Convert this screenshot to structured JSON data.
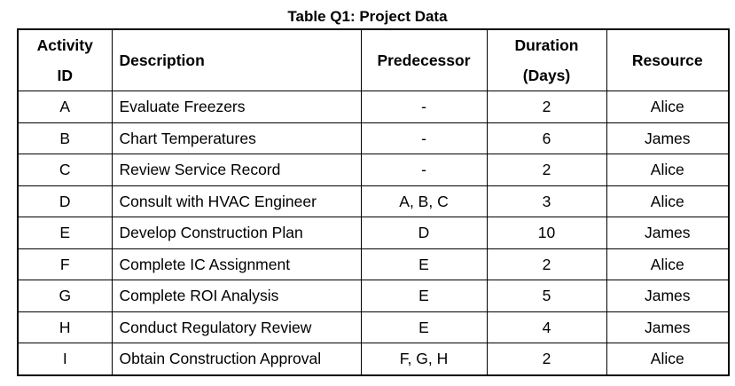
{
  "caption": "Table Q1: Project Data",
  "headers": {
    "activity_line1": "Activity",
    "activity_line2": "ID",
    "description": "Description",
    "predecessor": "Predecessor",
    "duration_line1": "Duration",
    "duration_line2": "(Days)",
    "resource": "Resource"
  },
  "rows": [
    {
      "id": "A",
      "description": "Evaluate Freezers",
      "predecessor": "-",
      "duration": "2",
      "resource": "Alice"
    },
    {
      "id": "B",
      "description": "Chart Temperatures",
      "predecessor": "-",
      "duration": "6",
      "resource": "James"
    },
    {
      "id": "C",
      "description": "Review Service Record",
      "predecessor": "-",
      "duration": "2",
      "resource": "Alice"
    },
    {
      "id": "D",
      "description": "Consult with HVAC Engineer",
      "predecessor": "A, B, C",
      "duration": "3",
      "resource": "Alice"
    },
    {
      "id": "E",
      "description": "Develop Construction Plan",
      "predecessor": "D",
      "duration": "10",
      "resource": "James"
    },
    {
      "id": "F",
      "description": "Complete IC Assignment",
      "predecessor": "E",
      "duration": "2",
      "resource": "Alice"
    },
    {
      "id": "G",
      "description": "Complete ROI Analysis",
      "predecessor": "E",
      "duration": "5",
      "resource": "James"
    },
    {
      "id": "H",
      "description": "Conduct Regulatory Review",
      "predecessor": "E",
      "duration": "4",
      "resource": "James"
    },
    {
      "id": "I",
      "description": "Obtain Construction Approval",
      "predecessor": "F, G, H",
      "duration": "2",
      "resource": "Alice"
    }
  ]
}
